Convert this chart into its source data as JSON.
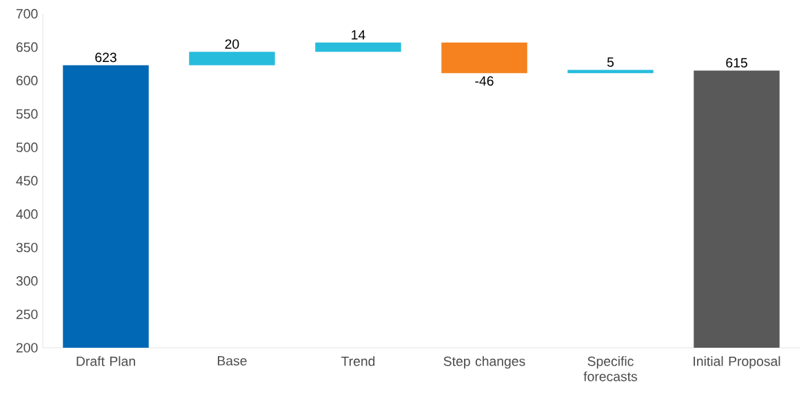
{
  "chart_data": {
    "type": "bar",
    "categories": [
      "Draft Plan",
      "Base",
      "Trend",
      "Step changes",
      "Specific forecasts",
      "Initial Proposal"
    ],
    "values": [
      623,
      20,
      14,
      -46,
      5,
      615
    ],
    "base": [
      null,
      623,
      643,
      657,
      611,
      null
    ],
    "colors": [
      "#0068b5",
      "#27bcdc",
      "#27bcdc",
      "#f5821f",
      "#27bcdc",
      "#595959"
    ],
    "data_labels": true,
    "ylim": [
      200,
      700
    ],
    "yticks": [
      200,
      250,
      300,
      350,
      400,
      450,
      500,
      550,
      600,
      650,
      700
    ],
    "grid": false
  }
}
